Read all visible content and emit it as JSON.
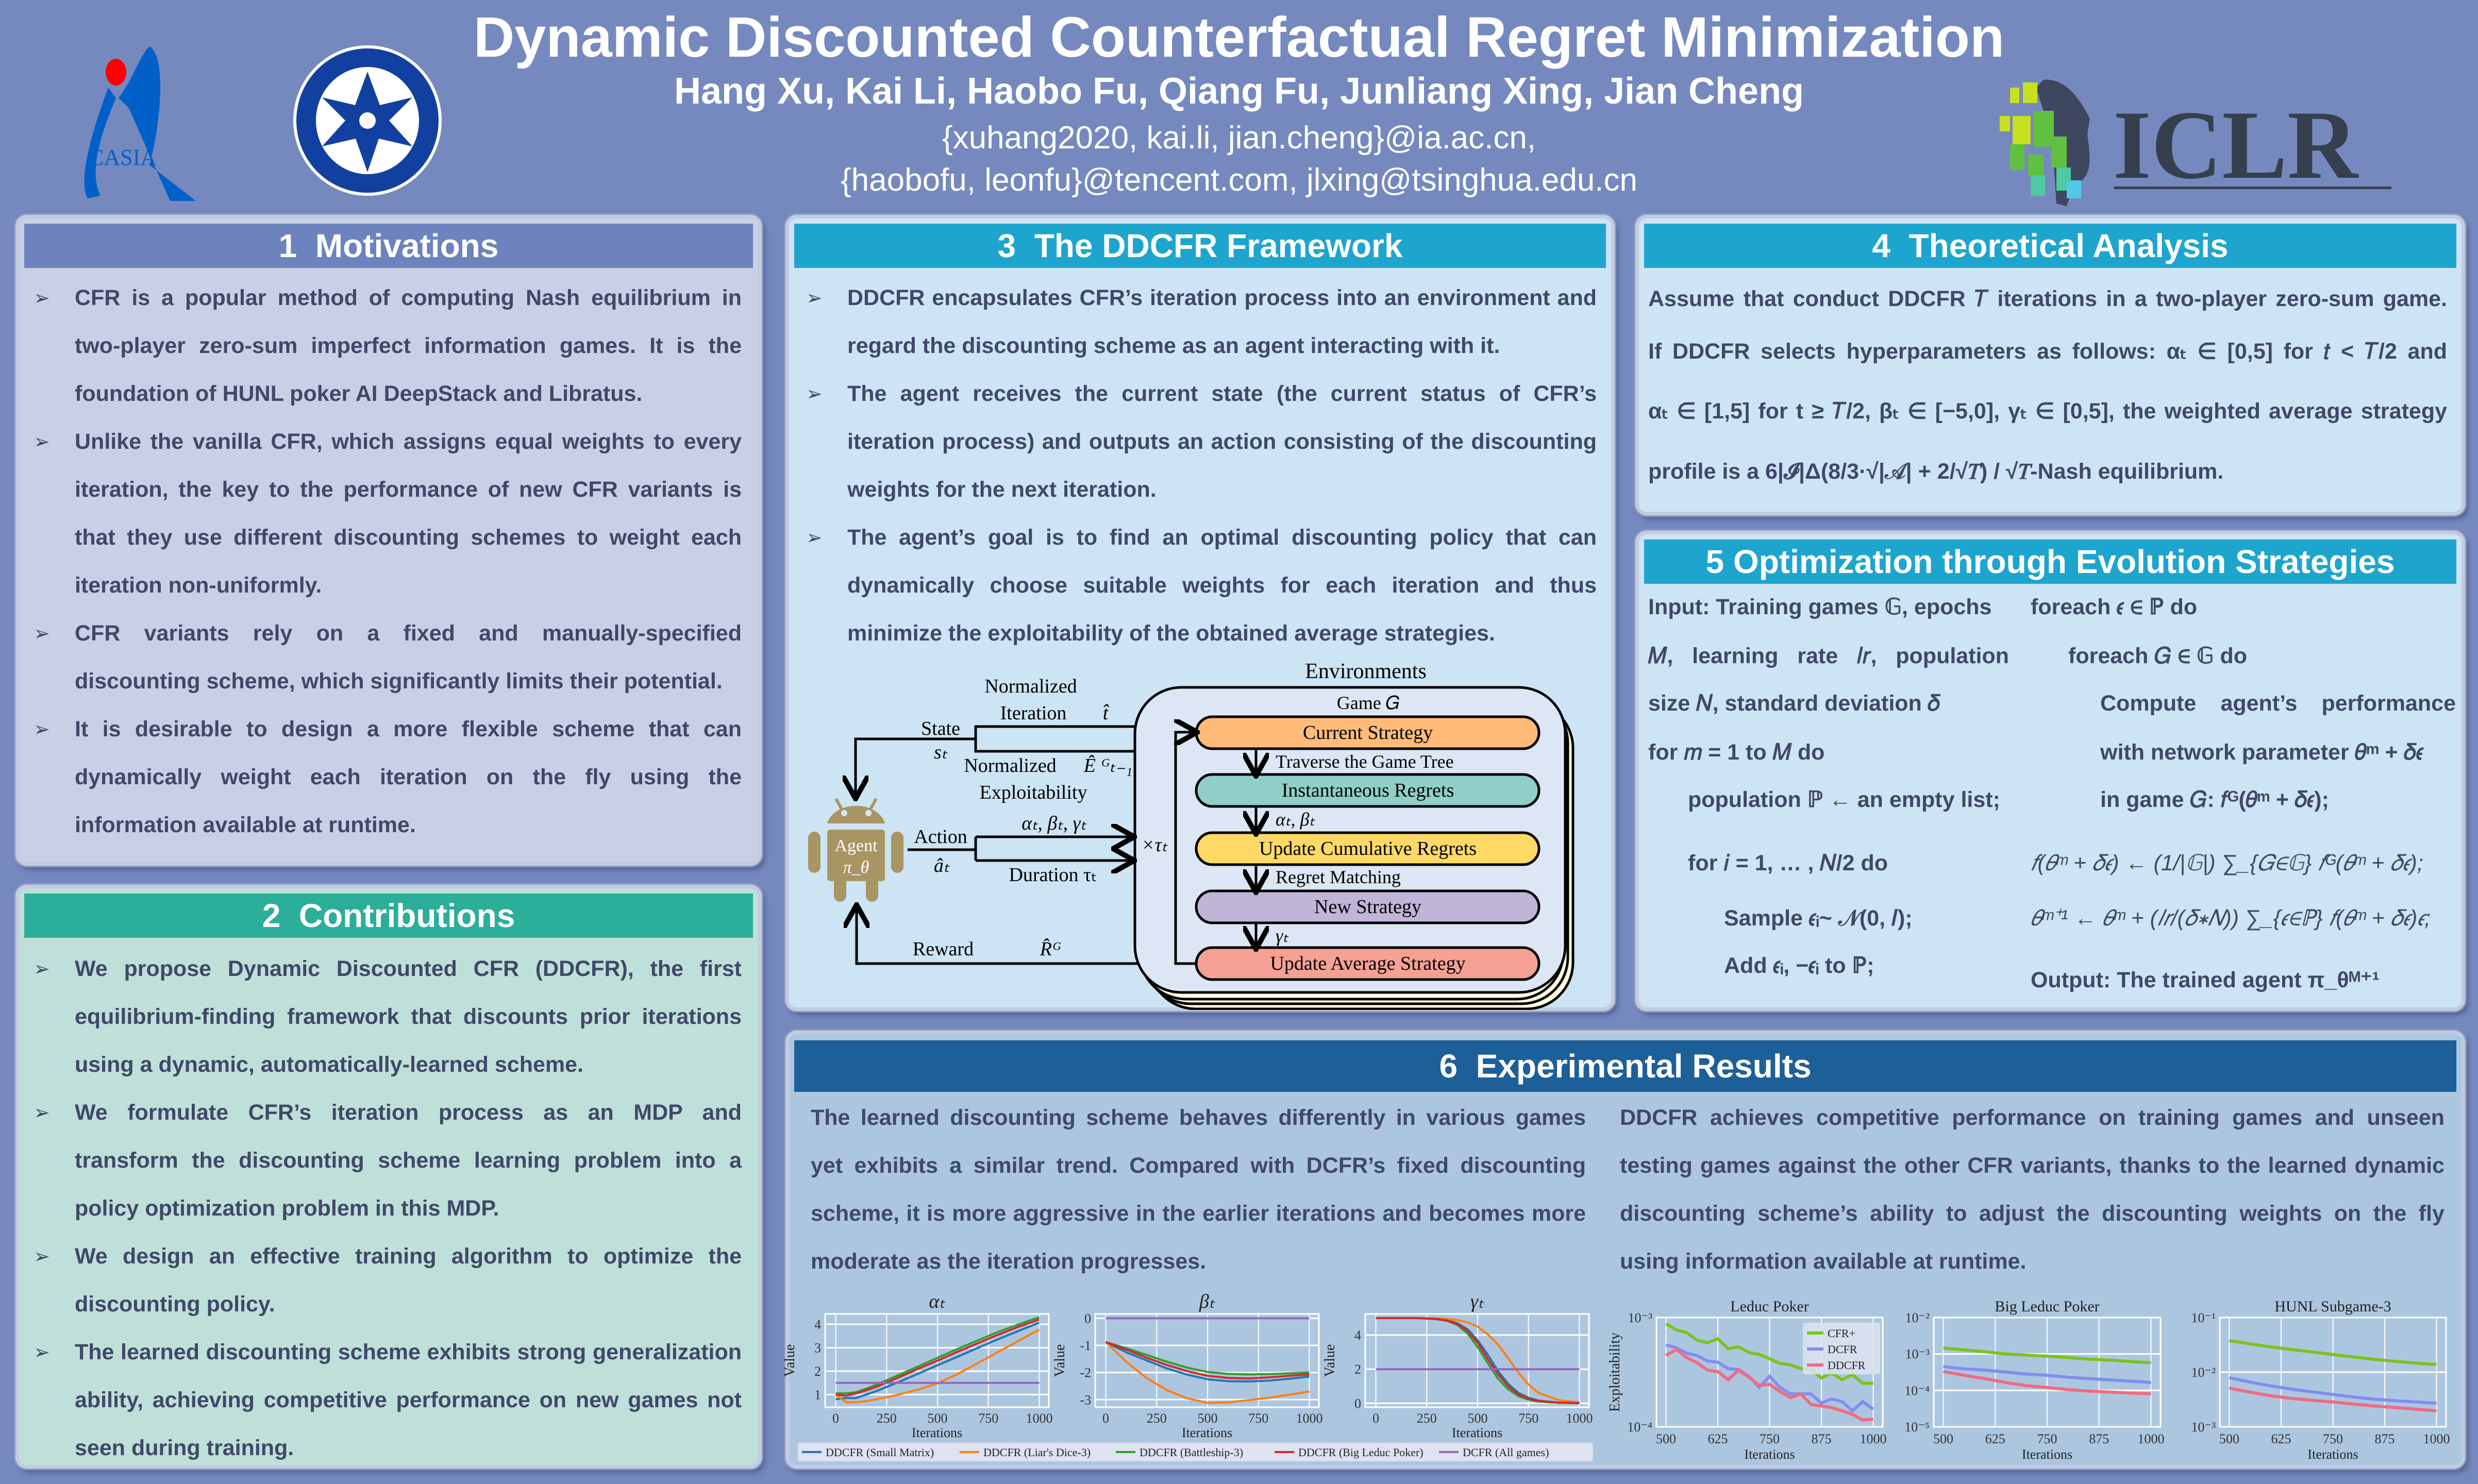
{
  "header": {
    "title": "Dynamic Discounted Counterfactual Regret Minimization",
    "authors": "Hang Xu, Kai Li, Haobo Fu, Qiang Fu, Junliang Xing, Jian Cheng",
    "emails_1": "{xuhang2020, kai.li, jian.cheng}@ia.ac.cn,",
    "emails_2": "{haobofu, leonfu}@tencent.com, jlxing@tsinghua.edu.cn",
    "logos": {
      "casia": "CASIA",
      "cas": "CHINESE ACADEMY OF SCIENCES",
      "iclr": "ICLR"
    }
  },
  "sections": {
    "motivations": {
      "title": "1  Motivations",
      "bullets": [
        "CFR is a popular method of computing Nash equilibrium in two-player zero-sum imperfect information games. It is the foundation of HUNL poker AI DeepStack and Libratus.",
        "Unlike the vanilla CFR, which assigns equal weights to every iteration, the key to the performance of new CFR variants is that they use different discounting schemes to weight each iteration non-uniformly.",
        "CFR variants rely on a fixed and manually-specified discounting scheme, which significantly limits their potential.",
        "It is desirable to design a more flexible scheme that can dynamically weight each iteration on the fly using the information available at runtime."
      ]
    },
    "contributions": {
      "title": "2  Contributions",
      "bullets": [
        "We propose Dynamic Discounted CFR (DDCFR), the first equilibrium-finding framework that discounts prior iterations using a dynamic, automatically-learned scheme.",
        "We formulate CFR’s iteration process as an MDP and transform the discounting scheme learning problem into a policy optimization problem in this MDP.",
        "We design an effective training algorithm to optimize the discounting policy.",
        "The learned discounting scheme exhibits strong generalization ability, achieving competitive performance on new games not seen during training."
      ]
    },
    "framework": {
      "title": "3  The DDCFR Framework",
      "bullets": [
        "DDCFR encapsulates CFR’s iteration process into an environment and regard the discounting scheme as an agent interacting with it.",
        "The agent receives the current state (the current status of CFR’s iteration process) and outputs an action consisting of the discounting weights for the next iteration.",
        "The agent’s goal is to find an optimal discounting policy that can dynamically choose suitable weights for each iteration and thus minimize the exploitability of the obtained average strategies."
      ],
      "diagram": {
        "environments": "Environments",
        "game": "Game 𝐺",
        "boxes": [
          "Current Strategy",
          "Instantaneous Regrets",
          "Update Cumulative Regrets",
          "New Strategy",
          "Update Average Strategy"
        ],
        "box_colors": [
          "#ffbb77",
          "#8fcfc8",
          "#ffd966",
          "#bfb5d9",
          "#f6a195"
        ],
        "edge_labels": [
          "Traverse the Game Tree",
          "αₜ, βₜ",
          "Regret Matching",
          "γₜ"
        ],
        "state": "State",
        "state_sym": "sₜ",
        "norm_iter_1": "Normalized",
        "norm_iter_2": "Iteration",
        "t_hat": "t̂",
        "norm_expl_1": "Normalized",
        "norm_expl_sym": "Ê ᴳₜ₋₁",
        "norm_expl_2": "Exploitability",
        "action": "Action",
        "action_sym": "âₜ",
        "weights": "αₜ, βₜ, γₜ",
        "duration": "Duration τₜ",
        "times_tau": "×τₜ",
        "reward": "Reward",
        "reward_sym": "R̂ᴳ",
        "agent": "Agent",
        "agent_sym": "π_θ",
        "agent_color": "#a89563"
      }
    },
    "theory": {
      "title": "4  Theoretical Analysis",
      "lines": [
        "Assume that conduct DDCFR 𝑇 iterations in a two-player zero-sum game.",
        "If DDCFR selects hyperparameters as follows: αₜ ∈ [0,5] for 𝑡 < 𝑇/2 and",
        "αₜ ∈ [1,5] for t ≥ 𝑇/2, βₜ ∈ [−5,0], γₜ ∈ [0,5], the weighted average strategy",
        "profile is a 6|𝓘|Δ(8/3·√|𝒜| + 2/√𝑇) / √𝑇-Nash equilibrium."
      ]
    },
    "optimization": {
      "title": "5 Optimization through Evolution Strategies",
      "left": [
        "Input: Training games 𝔾, epochs",
        "𝑀,  learning  rate  𝑙𝑟,  population",
        "size 𝑁, standard deviation 𝛿",
        "for 𝑚 = 1 to 𝑀 do",
        "population ℙ  ← an empty list;",
        "for 𝑖 = 1, … , 𝑁/2 do",
        "Sample 𝜖ᵢ~ 𝒩(0, 𝐼);",
        "Add 𝜖ᵢ, −𝜖ᵢ to ℙ;"
      ],
      "right": [
        "foreach 𝜖 ∈ ℙ do",
        "foreach 𝐺 ∈ 𝔾 do",
        "Compute   agent’s   performance",
        "with network parameter 𝜃ᵐ + 𝛿𝜖",
        "in game 𝐺:  𝑓ᴳ(𝜃ᵐ + 𝛿𝜖);",
        "𝑓(𝜃ᵐ + 𝛿𝜖) ← (1/|𝔾|) ∑_{𝐺∈𝔾} 𝑓ᴳ(𝜃ᵐ + 𝛿𝜖);",
        "𝜃ᵐ⁺¹ ← 𝜃ᵐ + (𝑙𝑟/(𝛿∗𝑁)) ∑_{𝜖∈ℙ} 𝑓(𝜃ᵐ + 𝛿𝜖)𝜖;",
        "Output: The trained agent π_θᴹ⁺¹"
      ]
    },
    "results": {
      "title": "6  Experimental Results",
      "left": "The learned discounting scheme behaves differently in various games yet exhibits a similar trend. Compared with DCFR’s fixed discounting scheme, it is more aggressive in the earlier iterations and becomes more moderate as the iteration progresses.",
      "right": "DDCFR achieves competitive performance on training games and unseen testing games against the other CFR variants, thanks to the learned dynamic discounting scheme’s ability to adjust the discounting weights on the fly using information available at runtime."
    }
  },
  "colors": {
    "background": "#7589bf",
    "text": "#404868",
    "motivations_header": "#6d83bd",
    "contributions_header": "#2bae9a",
    "framework_header": "#1ea5ce",
    "results_header": "#1d5f98"
  },
  "chart_legend_1": [
    {
      "name": "DDCFR (Small Matrix)",
      "color": "#1f77b4"
    },
    {
      "name": "DDCFR (Liar's Dice-3)",
      "color": "#ff7f0e"
    },
    {
      "name": "DDCFR (Battleship-3)",
      "color": "#2ca02c"
    },
    {
      "name": "DDCFR (Big Leduc Poker)",
      "color": "#d62728"
    },
    {
      "name": "DCFR (All games)",
      "color": "#9467bd"
    }
  ],
  "chart_data": [
    {
      "type": "line",
      "title": "αₜ",
      "xlabel": "Iterations",
      "ylabel": "Value",
      "xlim": [
        -52,
        1047
      ],
      "ylim": [
        0.46,
        4.44
      ],
      "xticks": [
        0,
        250,
        500,
        750,
        1000
      ],
      "yticks": [
        1,
        2,
        3,
        4
      ],
      "grid": true,
      "x": [
        0,
        50,
        100,
        150,
        200,
        300,
        400,
        500,
        600,
        700,
        800,
        900,
        1000
      ],
      "series": [
        {
          "name": "DDCFR (Small Matrix)",
          "color": "#1f77b4",
          "values": [
            0.8,
            0.85,
            0.85,
            1.0,
            1.15,
            1.5,
            1.87,
            2.25,
            2.62,
            3.0,
            3.37,
            3.72,
            4.07
          ]
        },
        {
          "name": "DDCFR (Liar's Dice-3)",
          "color": "#ff7f0e",
          "values": [
            1.0,
            0.68,
            0.67,
            0.72,
            0.8,
            0.98,
            1.2,
            1.48,
            1.88,
            2.35,
            2.83,
            3.3,
            3.77
          ]
        },
        {
          "name": "DDCFR (Battleship-3)",
          "color": "#2ca02c",
          "values": [
            1.05,
            1.05,
            1.1,
            1.25,
            1.42,
            1.8,
            2.18,
            2.57,
            2.95,
            3.32,
            3.68,
            4.0,
            4.3
          ]
        },
        {
          "name": "DDCFR (Big Leduc Poker)",
          "color": "#d62728",
          "values": [
            1.0,
            0.95,
            1.05,
            1.18,
            1.33,
            1.7,
            2.08,
            2.45,
            2.83,
            3.2,
            3.56,
            3.9,
            4.2
          ]
        },
        {
          "name": "DCFR (All games)",
          "color": "#9467bd",
          "values": [
            1.5,
            1.5,
            1.5,
            1.5,
            1.5,
            1.5,
            1.5,
            1.5,
            1.5,
            1.5,
            1.5,
            1.5,
            1.5
          ]
        }
      ]
    },
    {
      "type": "line",
      "title": "βₜ",
      "xlabel": "Iterations",
      "ylabel": "Value",
      "xlim": [
        -52,
        1047
      ],
      "ylim": [
        -3.28,
        0.16
      ],
      "xticks": [
        0,
        250,
        500,
        750,
        1000
      ],
      "yticks": [
        0,
        -1,
        -2,
        -3
      ],
      "grid": true,
      "x": [
        0,
        100,
        200,
        300,
        400,
        500,
        600,
        700,
        800,
        900,
        1000
      ],
      "series": [
        {
          "name": "DDCFR (Small Matrix)",
          "color": "#1f77b4",
          "values": [
            -0.88,
            -1.25,
            -1.55,
            -1.85,
            -2.08,
            -2.25,
            -2.32,
            -2.33,
            -2.3,
            -2.23,
            -2.15
          ]
        },
        {
          "name": "DDCFR (Liar's Dice-3)",
          "color": "#ff7f0e",
          "values": [
            -0.88,
            -1.6,
            -2.2,
            -2.65,
            -2.95,
            -3.12,
            -3.1,
            -3.02,
            -2.93,
            -2.82,
            -2.7
          ]
        },
        {
          "name": "DDCFR (Battleship-3)",
          "color": "#2ca02c",
          "values": [
            -0.88,
            -1.1,
            -1.35,
            -1.6,
            -1.82,
            -1.98,
            -2.05,
            -2.07,
            -2.06,
            -2.03,
            -2.0
          ]
        },
        {
          "name": "DDCFR (Big Leduc Poker)",
          "color": "#d62728",
          "values": [
            -0.88,
            -1.15,
            -1.45,
            -1.72,
            -1.95,
            -2.12,
            -2.2,
            -2.22,
            -2.18,
            -2.12,
            -2.07
          ]
        },
        {
          "name": "DCFR (All games)",
          "color": "#9467bd",
          "values": [
            0,
            0,
            0,
            0,
            0,
            0,
            0,
            0,
            0,
            0,
            0
          ]
        }
      ]
    },
    {
      "type": "line",
      "title": "γₜ",
      "xlabel": "Iterations",
      "ylabel": "Value",
      "xlim": [
        -52,
        1047
      ],
      "ylim": [
        -0.23,
        5.24
      ],
      "xticks": [
        0,
        250,
        500,
        750,
        1000
      ],
      "yticks": [
        0,
        2,
        4
      ],
      "grid": true,
      "x": [
        0,
        100,
        200,
        300,
        350,
        400,
        450,
        500,
        550,
        600,
        650,
        700,
        750,
        800,
        900,
        1000
      ],
      "series": [
        {
          "name": "DDCFR (Small Matrix)",
          "color": "#1f77b4",
          "values": [
            5,
            5,
            5,
            4.95,
            4.88,
            4.7,
            4.35,
            3.7,
            2.85,
            1.9,
            1.15,
            0.62,
            0.32,
            0.16,
            0.04,
            0.01
          ]
        },
        {
          "name": "DDCFR (Liar's Dice-3)",
          "color": "#ff7f0e",
          "values": [
            5,
            5,
            5,
            4.98,
            4.95,
            4.88,
            4.75,
            4.5,
            4.05,
            3.45,
            2.65,
            1.8,
            1.1,
            0.6,
            0.18,
            0.05
          ]
        },
        {
          "name": "DDCFR (Battleship-3)",
          "color": "#2ca02c",
          "values": [
            5,
            5,
            5,
            4.93,
            4.83,
            4.6,
            4.1,
            3.3,
            2.35,
            1.45,
            0.82,
            0.42,
            0.21,
            0.1,
            0.03,
            0.01
          ]
        },
        {
          "name": "DDCFR (Big Leduc Poker)",
          "color": "#d62728",
          "values": [
            5,
            5,
            5,
            4.95,
            4.86,
            4.65,
            4.25,
            3.55,
            2.6,
            1.7,
            1.0,
            0.52,
            0.27,
            0.13,
            0.03,
            0.01
          ]
        },
        {
          "name": "DCFR (All games)",
          "color": "#9467bd",
          "values": [
            2,
            2,
            2,
            2,
            2,
            2,
            2,
            2,
            2,
            2,
            2,
            2,
            2,
            2,
            2,
            2
          ]
        }
      ]
    },
    {
      "type": "line",
      "title": "Leduc Poker",
      "xlabel": "Iterations",
      "ylabel": "Exploitability",
      "yscale": "log",
      "xlim": [
        477,
        1023
      ],
      "ylim": [
        0.0001,
        0.001
      ],
      "xticks": [
        500,
        625,
        750,
        875,
        1000
      ],
      "yticks": [
        0.001,
        0.0001
      ],
      "ytick_labels": [
        "10⁻³",
        "10⁻⁴"
      ],
      "grid": true,
      "legend": "top-right",
      "x": [
        500,
        525,
        550,
        575,
        600,
        625,
        650,
        675,
        700,
        725,
        750,
        775,
        800,
        825,
        850,
        875,
        900,
        925,
        950,
        975,
        1000
      ],
      "series": [
        {
          "name": "CFR+",
          "color": "#7cc31c",
          "values": [
            0.00088,
            0.00077,
            0.00073,
            0.00062,
            0.00059,
            0.00064,
            0.00052,
            0.00054,
            0.00048,
            0.00046,
            0.00042,
            0.00038,
            0.00037,
            0.00034,
            0.000335,
            0.00028,
            0.00031,
            0.00027,
            0.0003,
            0.00025,
            0.00025
          ]
        },
        {
          "name": "DCFR",
          "color": "#7f8ef0",
          "values": [
            0.00056,
            0.00053,
            0.00047,
            0.00045,
            0.0004,
            0.00039,
            0.00034,
            0.000335,
            0.00029,
            0.00023,
            0.00029,
            0.00023,
            0.0002,
            0.0002,
            0.0002,
            0.000165,
            0.00018,
            0.00017,
            0.00014,
            0.00017,
            0.000145
          ]
        },
        {
          "name": "DDCFR",
          "color": "#f06b82",
          "values": [
            0.00045,
            0.00051,
            0.00043,
            0.000385,
            0.00033,
            0.00032,
            0.00027,
            0.00033,
            0.000285,
            0.00024,
            0.000245,
            0.00021,
            0.000185,
            0.0002,
            0.00016,
            0.000155,
            0.00015,
            0.00014,
            0.00013,
            0.000115,
            0.000118
          ]
        }
      ]
    },
    {
      "type": "line",
      "title": "Big Leduc Poker",
      "xlabel": "Iterations",
      "ylabel": "",
      "yscale": "log",
      "xlim": [
        477,
        1023
      ],
      "ylim": [
        1e-05,
        0.01
      ],
      "xticks": [
        500,
        625,
        750,
        875,
        1000
      ],
      "yticks": [
        0.01,
        0.001,
        0.0001,
        1e-05
      ],
      "ytick_labels": [
        "10⁻²",
        "10⁻³",
        "10⁻⁴",
        "10⁻⁵"
      ],
      "grid": true,
      "x": [
        500,
        550,
        600,
        650,
        700,
        750,
        800,
        850,
        900,
        950,
        1000
      ],
      "series": [
        {
          "name": "CFR+",
          "color": "#7cc31c",
          "values": [
            0.00145,
            0.0013,
            0.00115,
            0.001,
            0.00093,
            0.00087,
            0.0008,
            0.00072,
            0.00068,
            0.00062,
            0.00057
          ]
        },
        {
          "name": "DCFR",
          "color": "#7f8ef0",
          "values": [
            0.00045,
            0.00039,
            0.00036,
            0.00032,
            0.00028,
            0.00026,
            0.00023,
            0.00021,
            0.000195,
            0.00018,
            0.000165
          ]
        },
        {
          "name": "DDCFR",
          "color": "#f06b82",
          "values": [
            0.00033,
            0.00026,
            0.00021,
            0.000165,
            0.000135,
            0.00012,
            0.000105,
            9.6e-05,
            9e-05,
            8.5e-05,
            8e-05
          ]
        }
      ]
    },
    {
      "type": "line",
      "title": "HUNL Subgame-3",
      "xlabel": "Iterations",
      "ylabel": "",
      "yscale": "log",
      "xlim": [
        477,
        1023
      ],
      "ylim": [
        0.001,
        0.1
      ],
      "xticks": [
        500,
        625,
        750,
        875,
        1000
      ],
      "yticks": [
        0.1,
        0.01,
        0.001
      ],
      "ytick_labels": [
        "10⁻¹",
        "10⁻²",
        "10⁻³"
      ],
      "grid": true,
      "x": [
        500,
        550,
        600,
        650,
        700,
        750,
        800,
        850,
        900,
        950,
        1000
      ],
      "series": [
        {
          "name": "CFR+",
          "color": "#7cc31c",
          "values": [
            0.038,
            0.033,
            0.029,
            0.026,
            0.0235,
            0.021,
            0.019,
            0.0172,
            0.0158,
            0.0147,
            0.0138
          ]
        },
        {
          "name": "DCFR",
          "color": "#7f8ef0",
          "values": [
            0.0079,
            0.0066,
            0.0056,
            0.0049,
            0.00435,
            0.0039,
            0.0035,
            0.0032,
            0.003,
            0.00285,
            0.0027
          ]
        },
        {
          "name": "DDCFR",
          "color": "#f06b82",
          "values": [
            0.0051,
            0.0043,
            0.0037,
            0.0033,
            0.00305,
            0.00285,
            0.0026,
            0.0024,
            0.00225,
            0.0021,
            0.00196
          ]
        }
      ]
    }
  ]
}
